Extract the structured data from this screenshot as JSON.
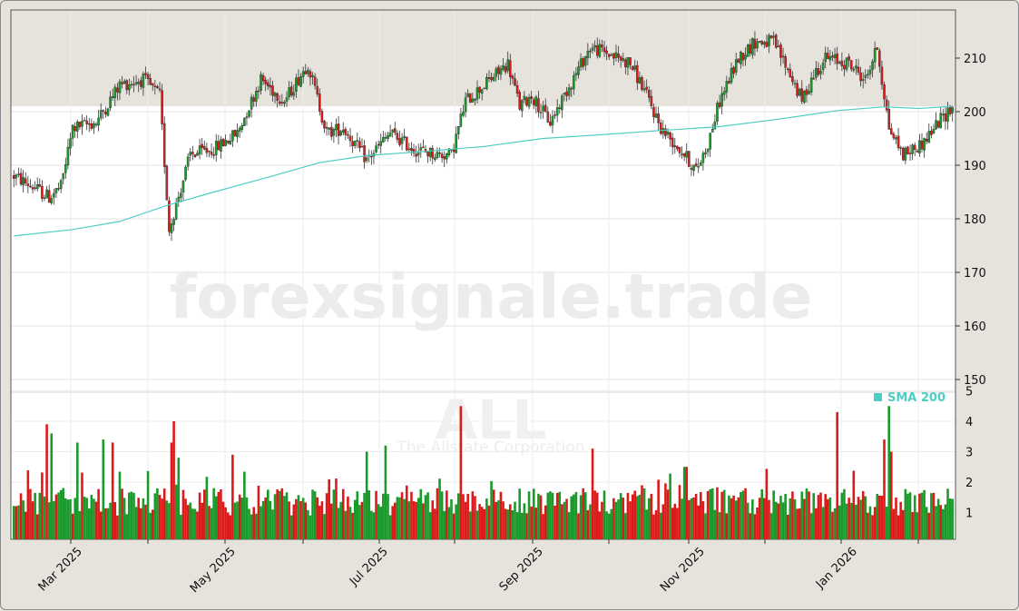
{
  "chart_data": [
    {
      "type": "candlestick",
      "symbol": "ALL",
      "company": "The Allstate Corporation",
      "watermark": "forexsignale.trade",
      "y_ticks": [
        150,
        160,
        170,
        180,
        190,
        200,
        210
      ],
      "ylim": [
        145,
        219
      ],
      "x_ticks": [
        "Mar 2025",
        "May 2025",
        "Jul 2025",
        "Sep 2025",
        "Nov 2025",
        "Jan 2026"
      ],
      "last_price": 201,
      "indicator": {
        "name": "SMA 200",
        "color": "#4ecdc4",
        "points": [
          {
            "x": 0,
            "y": 176.8
          },
          {
            "x": 25,
            "y": 178.0
          },
          {
            "x": 45,
            "y": 179.5
          },
          {
            "x": 65,
            "y": 182.5
          },
          {
            "x": 85,
            "y": 185.0
          },
          {
            "x": 110,
            "y": 188.0
          },
          {
            "x": 130,
            "y": 190.5
          },
          {
            "x": 150,
            "y": 191.8
          },
          {
            "x": 175,
            "y": 192.6
          },
          {
            "x": 200,
            "y": 193.5
          },
          {
            "x": 225,
            "y": 195.0
          },
          {
            "x": 250,
            "y": 195.7
          },
          {
            "x": 275,
            "y": 196.5
          },
          {
            "x": 300,
            "y": 197.2
          },
          {
            "x": 325,
            "y": 198.6
          },
          {
            "x": 350,
            "y": 200.2
          },
          {
            "x": 370,
            "y": 200.9
          },
          {
            "x": 385,
            "y": 200.6
          },
          {
            "x": 399,
            "y": 201.0
          }
        ]
      },
      "candle_colors": {
        "up": "#1a9a2a",
        "down": "#dd1a1a"
      },
      "price_path": [
        {
          "x": 0,
          "y": 188
        },
        {
          "x": 8,
          "y": 186
        },
        {
          "x": 15,
          "y": 184
        },
        {
          "x": 20,
          "y": 186
        },
        {
          "x": 25,
          "y": 197
        },
        {
          "x": 35,
          "y": 198
        },
        {
          "x": 45,
          "y": 205
        },
        {
          "x": 55,
          "y": 206
        },
        {
          "x": 62,
          "y": 203
        },
        {
          "x": 66,
          "y": 178
        },
        {
          "x": 75,
          "y": 192
        },
        {
          "x": 85,
          "y": 193
        },
        {
          "x": 95,
          "y": 196
        },
        {
          "x": 105,
          "y": 206
        },
        {
          "x": 115,
          "y": 202
        },
        {
          "x": 125,
          "y": 209
        },
        {
          "x": 133,
          "y": 196
        },
        {
          "x": 140,
          "y": 197
        },
        {
          "x": 150,
          "y": 191
        },
        {
          "x": 160,
          "y": 196
        },
        {
          "x": 170,
          "y": 193
        },
        {
          "x": 180,
          "y": 192
        },
        {
          "x": 186,
          "y": 192
        },
        {
          "x": 192,
          "y": 202
        },
        {
          "x": 200,
          "y": 205
        },
        {
          "x": 210,
          "y": 209
        },
        {
          "x": 215,
          "y": 201
        },
        {
          "x": 220,
          "y": 203
        },
        {
          "x": 228,
          "y": 198
        },
        {
          "x": 235,
          "y": 204
        },
        {
          "x": 245,
          "y": 212
        },
        {
          "x": 252,
          "y": 211
        },
        {
          "x": 262,
          "y": 209
        },
        {
          "x": 268,
          "y": 204
        },
        {
          "x": 275,
          "y": 197
        },
        {
          "x": 285,
          "y": 192
        },
        {
          "x": 290,
          "y": 189
        },
        {
          "x": 295,
          "y": 194
        },
        {
          "x": 300,
          "y": 202
        },
        {
          "x": 308,
          "y": 210
        },
        {
          "x": 315,
          "y": 213
        },
        {
          "x": 323,
          "y": 213
        },
        {
          "x": 330,
          "y": 207
        },
        {
          "x": 335,
          "y": 202
        },
        {
          "x": 340,
          "y": 207
        },
        {
          "x": 345,
          "y": 210
        },
        {
          "x": 355,
          "y": 209
        },
        {
          "x": 362,
          "y": 206
        },
        {
          "x": 367,
          "y": 212
        },
        {
          "x": 372,
          "y": 197
        },
        {
          "x": 378,
          "y": 192
        },
        {
          "x": 386,
          "y": 194
        },
        {
          "x": 393,
          "y": 198
        },
        {
          "x": 399,
          "y": 201
        }
      ],
      "volume": {
        "y_ticks": [
          1,
          2,
          3,
          4,
          5
        ],
        "ylim": [
          0,
          5
        ],
        "spikes": [
          {
            "x": 14,
            "v": 3.9
          },
          {
            "x": 16,
            "v": 3.6
          },
          {
            "x": 27,
            "v": 3.3
          },
          {
            "x": 38,
            "v": 3.4
          },
          {
            "x": 42,
            "v": 3.3
          },
          {
            "x": 67,
            "v": 3.3
          },
          {
            "x": 68,
            "v": 4.0
          },
          {
            "x": 70,
            "v": 2.8
          },
          {
            "x": 93,
            "v": 2.9
          },
          {
            "x": 150,
            "v": 3.0
          },
          {
            "x": 158,
            "v": 3.2
          },
          {
            "x": 190,
            "v": 4.5
          },
          {
            "x": 246,
            "v": 3.1
          },
          {
            "x": 285,
            "v": 2.5
          },
          {
            "x": 286,
            "v": 2.5
          },
          {
            "x": 350,
            "v": 4.3
          },
          {
            "x": 370,
            "v": 3.4
          },
          {
            "x": 372,
            "v": 4.5
          },
          {
            "x": 373,
            "v": 3.0
          }
        ]
      }
    }
  ]
}
